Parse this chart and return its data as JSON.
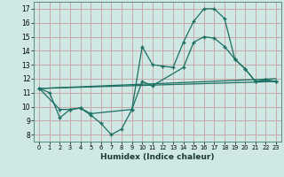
{
  "bg_color": "#cfe8e4",
  "grid_color": "#c8a8a8",
  "line_color": "#1a6e62",
  "xlabel": "Humidex (Indice chaleur)",
  "xlim": [
    -0.5,
    23.5
  ],
  "ylim": [
    7.5,
    17.5
  ],
  "xticks": [
    0,
    1,
    2,
    3,
    4,
    5,
    6,
    7,
    8,
    9,
    10,
    11,
    12,
    13,
    14,
    15,
    16,
    17,
    18,
    19,
    20,
    21,
    22,
    23
  ],
  "yticks": [
    8,
    9,
    10,
    11,
    12,
    13,
    14,
    15,
    16,
    17
  ],
  "line1_x": [
    0,
    1,
    2,
    3,
    4,
    5,
    6,
    7,
    8,
    9,
    10,
    11,
    12,
    13,
    14,
    15,
    16,
    17,
    18,
    19,
    20,
    21,
    22,
    23
  ],
  "line1_y": [
    11.3,
    11.0,
    9.2,
    9.8,
    9.9,
    9.4,
    8.8,
    8.0,
    8.4,
    9.8,
    14.3,
    13.0,
    12.9,
    12.8,
    14.6,
    16.1,
    17.0,
    17.0,
    16.3,
    13.4,
    12.7,
    11.8,
    11.9,
    11.8
  ],
  "line2_x": [
    0,
    23
  ],
  "line2_y": [
    11.3,
    12.0
  ],
  "line3_x": [
    0,
    23
  ],
  "line3_y": [
    11.3,
    11.8
  ],
  "line4_x": [
    0,
    2,
    3,
    4,
    5,
    9,
    10,
    11,
    14,
    15,
    16,
    17,
    18,
    19,
    20,
    21,
    22,
    23
  ],
  "line4_y": [
    11.3,
    9.8,
    9.8,
    9.9,
    9.5,
    9.8,
    11.8,
    11.5,
    12.8,
    14.6,
    15.0,
    14.9,
    14.3,
    13.4,
    12.7,
    11.8,
    11.9,
    11.8
  ]
}
